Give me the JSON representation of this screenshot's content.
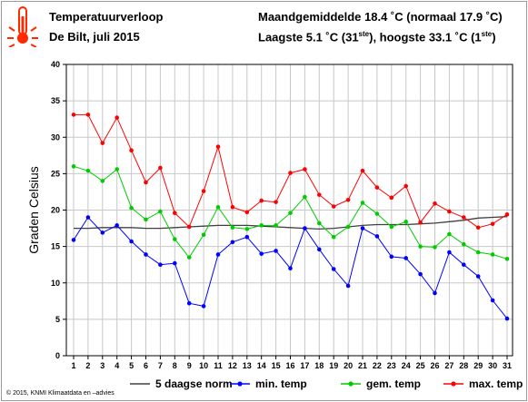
{
  "header": {
    "title": "Temperatuurverloop",
    "subtitle": "De Bilt, juli 2015",
    "monthly_avg": "Maandgemiddelde 18.4 ˚C (normaal 17.9 ˚C)",
    "extremes_pre": "Laagste 5.1 ˚C (31",
    "extremes_sup1": "ste",
    "extremes_mid": "), hoogste 33.1 ˚C (1",
    "extremes_sup2": "ste",
    "extremes_post": ")"
  },
  "icon": {
    "name": "thermometer-icon",
    "color": "#ff2a00"
  },
  "copyright": "© 2015, KNMI Klimaatdata en –advies",
  "chart_data": {
    "type": "line",
    "ylabel": "Graden Celsius",
    "xlabel": "",
    "ylim": [
      0,
      40
    ],
    "yticks": [
      0,
      5,
      10,
      15,
      20,
      25,
      30,
      35,
      40
    ],
    "grid": true,
    "legend_position": "bottom",
    "x": [
      1,
      2,
      3,
      4,
      5,
      6,
      7,
      8,
      9,
      10,
      11,
      12,
      13,
      14,
      15,
      16,
      17,
      18,
      19,
      20,
      21,
      22,
      23,
      24,
      25,
      26,
      27,
      28,
      29,
      30,
      31
    ],
    "series": [
      {
        "name": "5 daagse norm",
        "color": "#404040",
        "marker": false,
        "values": [
          17.5,
          17.5,
          17.6,
          17.6,
          17.6,
          17.5,
          17.5,
          17.6,
          17.7,
          17.8,
          17.9,
          17.9,
          17.9,
          17.8,
          17.7,
          17.6,
          17.5,
          17.4,
          17.5,
          17.7,
          17.9,
          18.0,
          18.0,
          18.0,
          18.1,
          18.2,
          18.4,
          18.6,
          18.9,
          19.0,
          19.1
        ]
      },
      {
        "name": "min. temp",
        "color": "#0000ff",
        "marker": true,
        "values": [
          15.9,
          19.0,
          16.9,
          17.9,
          15.7,
          13.9,
          12.5,
          12.7,
          7.2,
          6.8,
          13.9,
          15.6,
          16.3,
          14.0,
          14.4,
          12.0,
          17.5,
          14.6,
          11.9,
          9.6,
          17.5,
          16.4,
          13.6,
          13.4,
          11.2,
          8.6,
          14.2,
          12.5,
          10.9,
          7.6,
          5.1
        ]
      },
      {
        "name": "gem. temp",
        "color": "#00cc00",
        "marker": true,
        "values": [
          26.0,
          25.4,
          24.0,
          25.6,
          20.3,
          18.7,
          19.8,
          16.0,
          13.5,
          16.6,
          20.4,
          17.6,
          17.4,
          17.9,
          17.9,
          19.6,
          21.8,
          18.2,
          16.3,
          17.7,
          21.0,
          19.5,
          17.7,
          18.4,
          15.0,
          14.9,
          16.7,
          15.3,
          14.2,
          13.9,
          13.3
        ]
      },
      {
        "name": "max. temp",
        "color": "#ff0000",
        "marker": true,
        "values": [
          33.1,
          33.1,
          29.2,
          32.7,
          28.2,
          23.8,
          25.8,
          19.6,
          17.7,
          22.6,
          28.7,
          20.4,
          19.7,
          21.3,
          21.1,
          25.1,
          25.6,
          22.1,
          20.5,
          21.4,
          25.4,
          23.1,
          21.7,
          23.3,
          18.3,
          20.9,
          19.8,
          19.0,
          17.6,
          18.1,
          19.4
        ]
      }
    ]
  }
}
